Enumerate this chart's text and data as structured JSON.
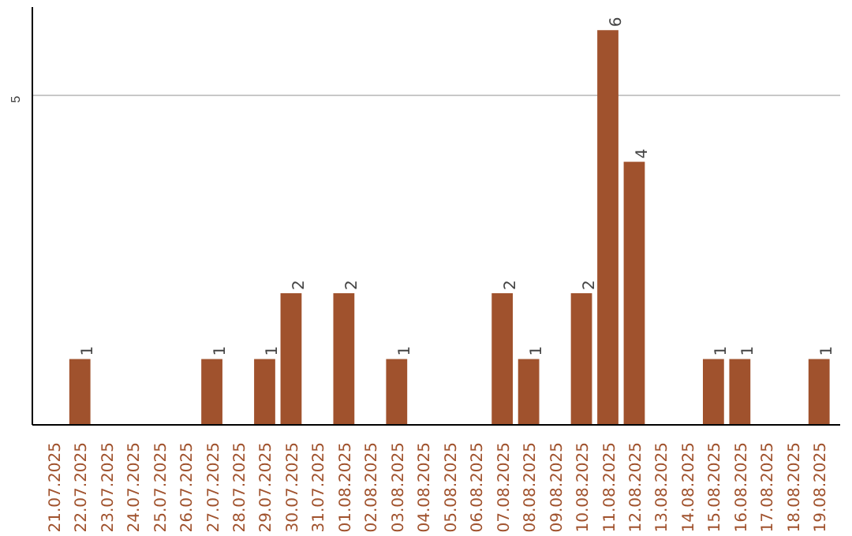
{
  "chart_data": {
    "type": "bar",
    "categories": [
      "21.07.2025",
      "22.07.2025",
      "23.07.2025",
      "24.07.2025",
      "25.07.2025",
      "26.07.2025",
      "27.07.2025",
      "28.07.2025",
      "29.07.2025",
      "30.07.2025",
      "31.07.2025",
      "01.08.2025",
      "02.08.2025",
      "03.08.2025",
      "04.08.2025",
      "05.08.2025",
      "06.08.2025",
      "07.08.2025",
      "08.08.2025",
      "09.08.2025",
      "10.08.2025",
      "11.08.2025",
      "12.08.2025",
      "13.08.2025",
      "14.08.2025",
      "15.08.2025",
      "16.08.2025",
      "17.08.2025",
      "18.08.2025",
      "19.08.2025"
    ],
    "values": [
      0,
      1,
      0,
      0,
      0,
      0,
      1,
      0,
      1,
      2,
      0,
      2,
      0,
      1,
      0,
      0,
      0,
      2,
      1,
      0,
      2,
      6,
      4,
      0,
      0,
      1,
      1,
      0,
      0,
      1
    ],
    "value_labels": [
      null,
      "1",
      null,
      null,
      null,
      null,
      "1",
      null,
      "1",
      "2",
      null,
      "2",
      null,
      "1",
      null,
      null,
      null,
      "2",
      "1",
      null,
      "2",
      "6",
      "4",
      null,
      null,
      "1",
      "1",
      null,
      null,
      "1"
    ],
    "color": "#a0522d",
    "ylim": [
      0,
      6.35
    ],
    "yticks": [
      5
    ],
    "grid": "y"
  }
}
